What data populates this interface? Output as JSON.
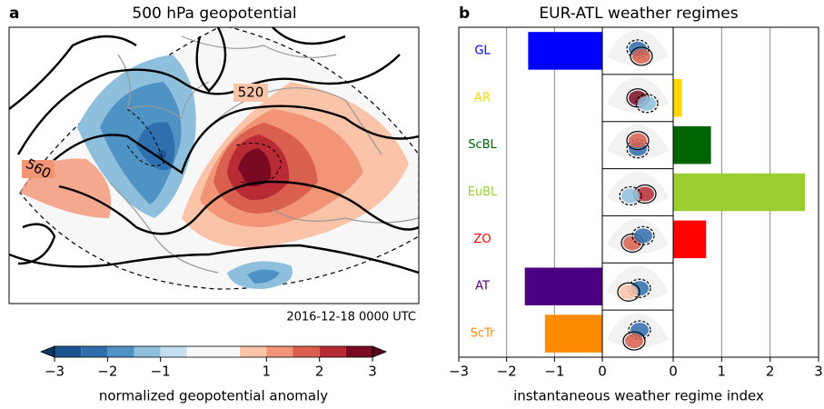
{
  "chart_data": [
    {
      "type": "map",
      "panel_label": "a",
      "title": "500 hPa geopotential",
      "timestamp": "2016-12-18 0000 UTC",
      "contour_labels": [
        520,
        560
      ],
      "colorbar": {
        "label": "normalized geopotential anomaly",
        "levels": [
          -3,
          -2.5,
          -2,
          -1.5,
          -1,
          -0.5,
          0.5,
          1,
          1.5,
          2,
          2.5,
          3
        ],
        "colors": [
          "#1a5590",
          "#2f6fad",
          "#4f93c5",
          "#8ebfdc",
          "#c6dff0",
          "#f7f7f7",
          "#fbc3a8",
          "#f29476",
          "#d9604e",
          "#b82a34",
          "#7a0a24"
        ],
        "extend_colors": [
          "#0a3462",
          "#5a001c"
        ],
        "xlim": [
          -3,
          3
        ],
        "xticks": [
          {
            "value": -3,
            "label": "−3"
          },
          {
            "value": -2,
            "label": "−2"
          },
          {
            "value": -1,
            "label": "−1"
          },
          1,
          2,
          3
        ]
      }
    },
    {
      "type": "barh",
      "panel_label": "b",
      "title": "EUR-ATL weather regimes",
      "xlabel": "instantaneous weather regime index",
      "categories": [
        "GL",
        "AR",
        "ScBL",
        "EuBL",
        "ZO",
        "AT",
        "ScTr"
      ],
      "values": [
        -1.55,
        0.18,
        0.78,
        2.72,
        0.68,
        -1.62,
        -1.2
      ],
      "colors": [
        "#0000ff",
        "#ffd700",
        "#006400",
        "#9acd32",
        "#ff0000",
        "#4b0082",
        "#ff8c00"
      ],
      "xlim": [
        -3,
        3
      ],
      "xticks": [
        {
          "value": -3,
          "label": "−3"
        },
        {
          "value": -2,
          "label": "−2"
        },
        {
          "value": -1,
          "label": "−1"
        },
        0,
        1,
        2,
        3
      ],
      "grid": true
    }
  ]
}
